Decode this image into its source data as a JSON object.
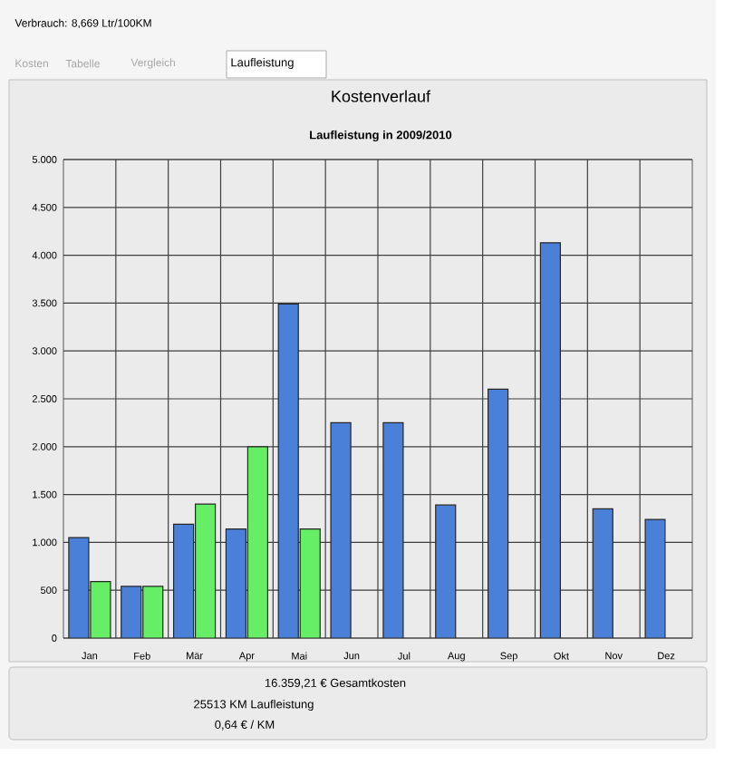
{
  "chart_data": {
    "type": "bar",
    "title": "Kostenverlauf",
    "subtitle": "Laufleistung in 2009/2010",
    "categories": [
      "Jan",
      "Feb",
      "Mär",
      "Apr",
      "Mai",
      "Jun",
      "Jul",
      "Aug",
      "Sep",
      "Okt",
      "Nov",
      "Dez"
    ],
    "series": [
      {
        "color": "#4a80d8",
        "values": [
          1050,
          540,
          1190,
          1140,
          3490,
          2250,
          2250,
          1390,
          2600,
          4130,
          1350,
          1240
        ]
      },
      {
        "color": "#66ee66",
        "values": [
          590,
          540,
          1400,
          2000,
          1140,
          null,
          null,
          null,
          null,
          null,
          null,
          null
        ]
      }
    ],
    "ylim": [
      0,
      5000
    ],
    "yticks": [
      0,
      {
        "value": 500,
        "label": "500"
      },
      {
        "value": 1000,
        "label": "1.000"
      },
      {
        "value": 1500,
        "label": "1.500"
      },
      {
        "value": 2000,
        "label": "2.000"
      },
      {
        "value": 2500,
        "label": "2.500"
      },
      {
        "value": 3000,
        "label": "3.000"
      },
      {
        "value": 3500,
        "label": "3.500"
      },
      {
        "value": 4000,
        "label": "4.000"
      },
      {
        "value": 4500,
        "label": "4.500"
      },
      {
        "value": 5000,
        "label": "5.000"
      }
    ],
    "grid": true,
    "annotations": [
      "Verbrauch: 8,669 Ltr/100KM",
      "Kosten",
      "Tabelle",
      "Vergleich",
      "Laufleistung",
      "16.359,21 € Gesamtkosten",
      "25513 KM Laufleistung",
      "0,64 € / KM"
    ]
  }
}
